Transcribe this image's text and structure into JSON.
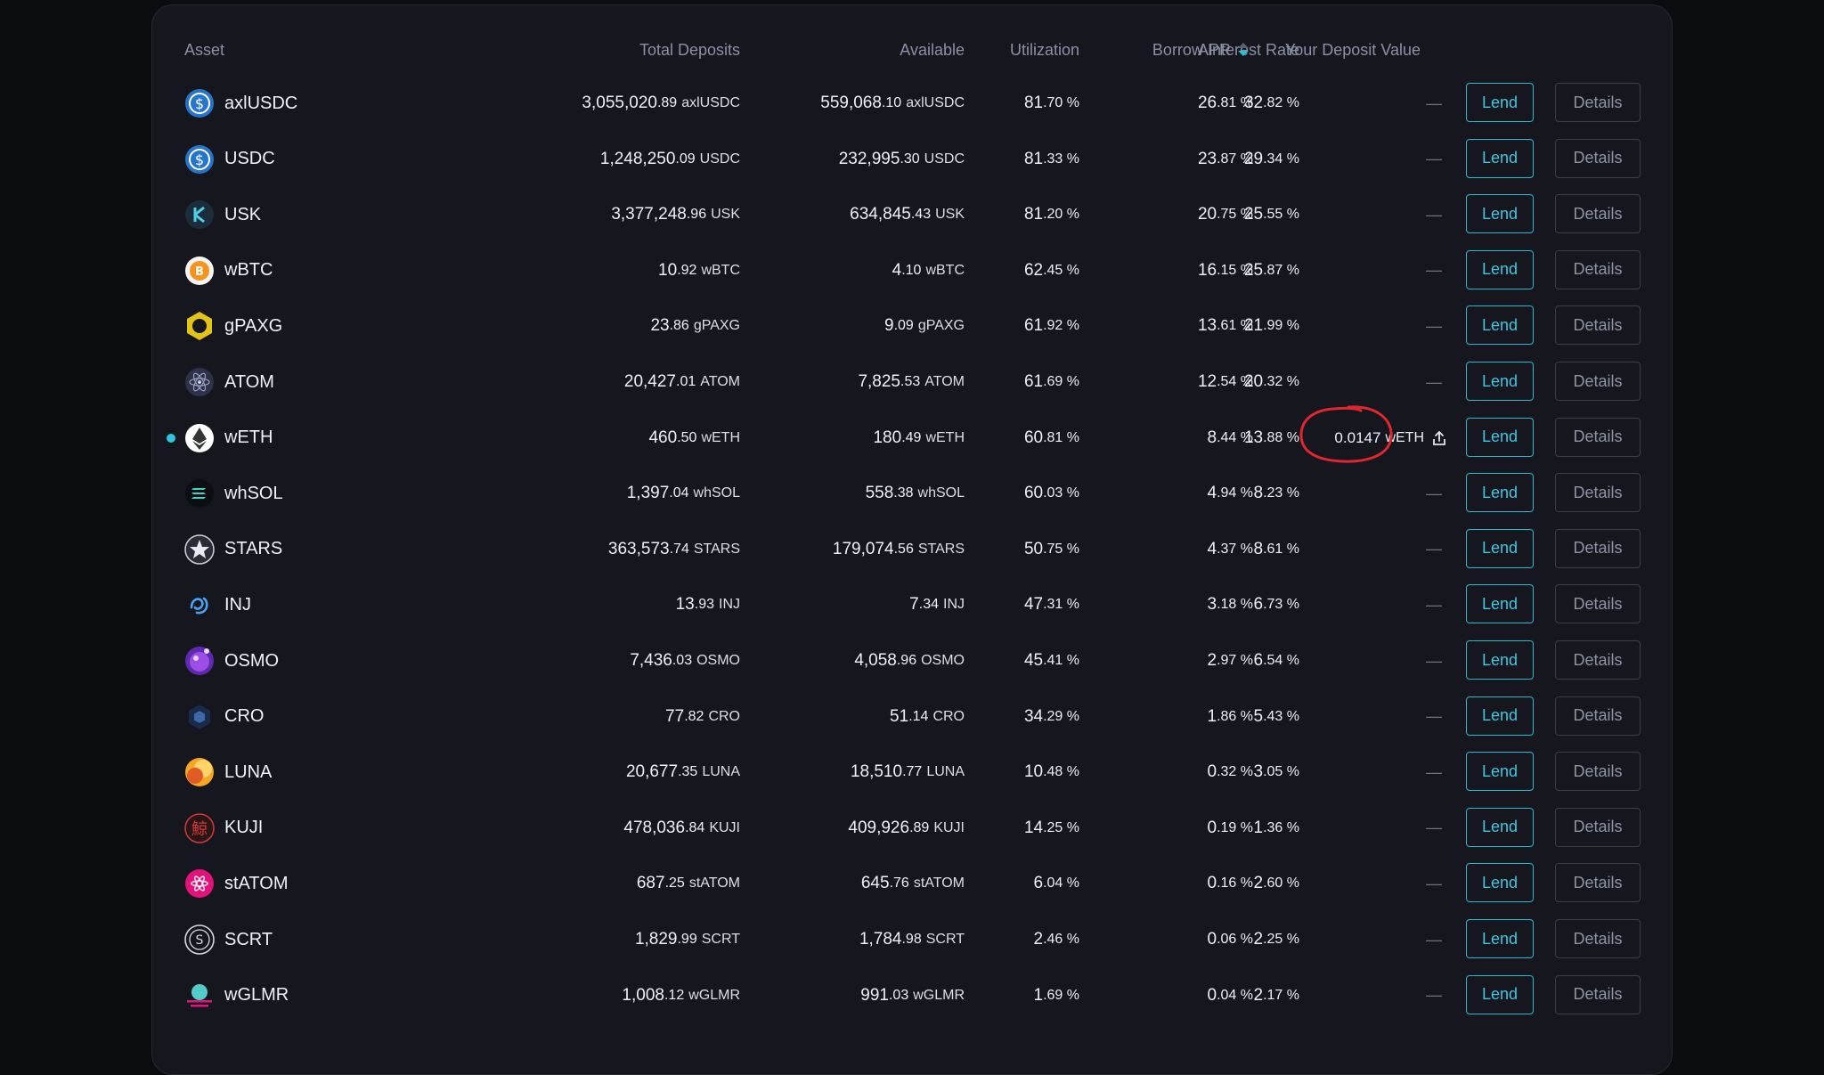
{
  "columns": {
    "asset": "Asset",
    "total_deposits": "Total Deposits",
    "available": "Available",
    "utilization": "Utilization",
    "borrow_rate": "Borrow Interest Rate",
    "apr": "APR",
    "deposit_value": "Your Deposit Value"
  },
  "sort": {
    "column": "apr",
    "direction": "desc"
  },
  "labels": {
    "lend": "Lend",
    "details": "Details",
    "empty": "—"
  },
  "rows": [
    {
      "asset": "axlUSDC",
      "icon": "usdc-icon",
      "td_int": "3,055,020",
      "td_dec": ".89",
      "td_unit": "axlUSDC",
      "av_int": "559,068",
      "av_dec": ".10",
      "av_unit": "axlUSDC",
      "ut_int": "81",
      "ut_dec": ".70 %",
      "br_int": "32",
      "br_dec": ".82 %",
      "apr_int": "26",
      "apr_dec": ".81 %"
    },
    {
      "asset": "USDC",
      "icon": "usdc-icon",
      "td_int": "1,248,250",
      "td_dec": ".09",
      "td_unit": "USDC",
      "av_int": "232,995",
      "av_dec": ".30",
      "av_unit": "USDC",
      "ut_int": "81",
      "ut_dec": ".33 %",
      "br_int": "29",
      "br_dec": ".34 %",
      "apr_int": "23",
      "apr_dec": ".87 %"
    },
    {
      "asset": "USK",
      "icon": "usk-icon",
      "td_int": "3,377,248",
      "td_dec": ".96",
      "td_unit": "USK",
      "av_int": "634,845",
      "av_dec": ".43",
      "av_unit": "USK",
      "ut_int": "81",
      "ut_dec": ".20 %",
      "br_int": "25",
      "br_dec": ".55 %",
      "apr_int": "20",
      "apr_dec": ".75 %"
    },
    {
      "asset": "wBTC",
      "icon": "bitcoin-icon",
      "td_int": "10",
      "td_dec": ".92",
      "td_unit": "wBTC",
      "av_int": "4",
      "av_dec": ".10",
      "av_unit": "wBTC",
      "ut_int": "62",
      "ut_dec": ".45 %",
      "br_int": "25",
      "br_dec": ".87 %",
      "apr_int": "16",
      "apr_dec": ".15 %"
    },
    {
      "asset": "gPAXG",
      "icon": "paxg-icon",
      "td_int": "23",
      "td_dec": ".86",
      "td_unit": "gPAXG",
      "av_int": "9",
      "av_dec": ".09",
      "av_unit": "gPAXG",
      "ut_int": "61",
      "ut_dec": ".92 %",
      "br_int": "21",
      "br_dec": ".99 %",
      "apr_int": "13",
      "apr_dec": ".61 %"
    },
    {
      "asset": "ATOM",
      "icon": "atom-icon",
      "td_int": "20,427",
      "td_dec": ".01",
      "td_unit": "ATOM",
      "av_int": "7,825",
      "av_dec": ".53",
      "av_unit": "ATOM",
      "ut_int": "61",
      "ut_dec": ".69 %",
      "br_int": "20",
      "br_dec": ".32 %",
      "apr_int": "12",
      "apr_dec": ".54 %"
    },
    {
      "asset": "wETH",
      "icon": "ethereum-icon",
      "td_int": "460",
      "td_dec": ".50",
      "td_unit": "wETH",
      "av_int": "180",
      "av_dec": ".49",
      "av_unit": "wETH",
      "ut_int": "60",
      "ut_dec": ".81 %",
      "br_int": "13",
      "br_dec": ".88 %",
      "apr_int": "8",
      "apr_dec": ".44 %",
      "deposit_int": "0",
      "deposit_dec": ".0147",
      "deposit_unit": "wETH",
      "active": true
    },
    {
      "asset": "whSOL",
      "icon": "solana-icon",
      "td_int": "1,397",
      "td_dec": ".04",
      "td_unit": "whSOL",
      "av_int": "558",
      "av_dec": ".38",
      "av_unit": "whSOL",
      "ut_int": "60",
      "ut_dec": ".03 %",
      "br_int": "8",
      "br_dec": ".23 %",
      "apr_int": "4",
      "apr_dec": ".94 %"
    },
    {
      "asset": "STARS",
      "icon": "stars-icon",
      "td_int": "363,573",
      "td_dec": ".74",
      "td_unit": "STARS",
      "av_int": "179,074",
      "av_dec": ".56",
      "av_unit": "STARS",
      "ut_int": "50",
      "ut_dec": ".75 %",
      "br_int": "8",
      "br_dec": ".61 %",
      "apr_int": "4",
      "apr_dec": ".37 %"
    },
    {
      "asset": "INJ",
      "icon": "injective-icon",
      "td_int": "13",
      "td_dec": ".93",
      "td_unit": "INJ",
      "av_int": "7",
      "av_dec": ".34",
      "av_unit": "INJ",
      "ut_int": "47",
      "ut_dec": ".31 %",
      "br_int": "6",
      "br_dec": ".73 %",
      "apr_int": "3",
      "apr_dec": ".18 %"
    },
    {
      "asset": "OSMO",
      "icon": "osmosis-icon",
      "td_int": "7,436",
      "td_dec": ".03",
      "td_unit": "OSMO",
      "av_int": "4,058",
      "av_dec": ".96",
      "av_unit": "OSMO",
      "ut_int": "45",
      "ut_dec": ".41 %",
      "br_int": "6",
      "br_dec": ".54 %",
      "apr_int": "2",
      "apr_dec": ".97 %"
    },
    {
      "asset": "CRO",
      "icon": "cronos-icon",
      "td_int": "77",
      "td_dec": ".82",
      "td_unit": "CRO",
      "av_int": "51",
      "av_dec": ".14",
      "av_unit": "CRO",
      "ut_int": "34",
      "ut_dec": ".29 %",
      "br_int": "5",
      "br_dec": ".43 %",
      "apr_int": "1",
      "apr_dec": ".86 %"
    },
    {
      "asset": "LUNA",
      "icon": "luna-icon",
      "td_int": "20,677",
      "td_dec": ".35",
      "td_unit": "LUNA",
      "av_int": "18,510",
      "av_dec": ".77",
      "av_unit": "LUNA",
      "ut_int": "10",
      "ut_dec": ".48 %",
      "br_int": "3",
      "br_dec": ".05 %",
      "apr_int": "0",
      "apr_dec": ".32 %"
    },
    {
      "asset": "KUJI",
      "icon": "kujira-icon",
      "td_int": "478,036",
      "td_dec": ".84",
      "td_unit": "KUJI",
      "av_int": "409,926",
      "av_dec": ".89",
      "av_unit": "KUJI",
      "ut_int": "14",
      "ut_dec": ".25 %",
      "br_int": "1",
      "br_dec": ".36 %",
      "apr_int": "0",
      "apr_dec": ".19 %"
    },
    {
      "asset": "stATOM",
      "icon": "statom-icon",
      "td_int": "687",
      "td_dec": ".25",
      "td_unit": "stATOM",
      "av_int": "645",
      "av_dec": ".76",
      "av_unit": "stATOM",
      "ut_int": "6",
      "ut_dec": ".04 %",
      "br_int": "2",
      "br_dec": ".60 %",
      "apr_int": "0",
      "apr_dec": ".16 %"
    },
    {
      "asset": "SCRT",
      "icon": "secret-icon",
      "td_int": "1,829",
      "td_dec": ".99",
      "td_unit": "SCRT",
      "av_int": "1,784",
      "av_dec": ".98",
      "av_unit": "SCRT",
      "ut_int": "2",
      "ut_dec": ".46 %",
      "br_int": "2",
      "br_dec": ".25 %",
      "apr_int": "0",
      "apr_dec": ".06 %"
    },
    {
      "asset": "wGLMR",
      "icon": "moonbeam-icon",
      "td_int": "1,008",
      "td_dec": ".12",
      "td_unit": "wGLMR",
      "av_int": "991",
      "av_dec": ".03",
      "av_unit": "wGLMR",
      "ut_int": "1",
      "ut_dec": ".69 %",
      "br_int": "2",
      "br_dec": ".17 %",
      "apr_int": "0",
      "apr_dec": ".04 %"
    }
  ],
  "colors": {
    "accent": "#2ab7d3",
    "annotation": "#e0262e"
  }
}
